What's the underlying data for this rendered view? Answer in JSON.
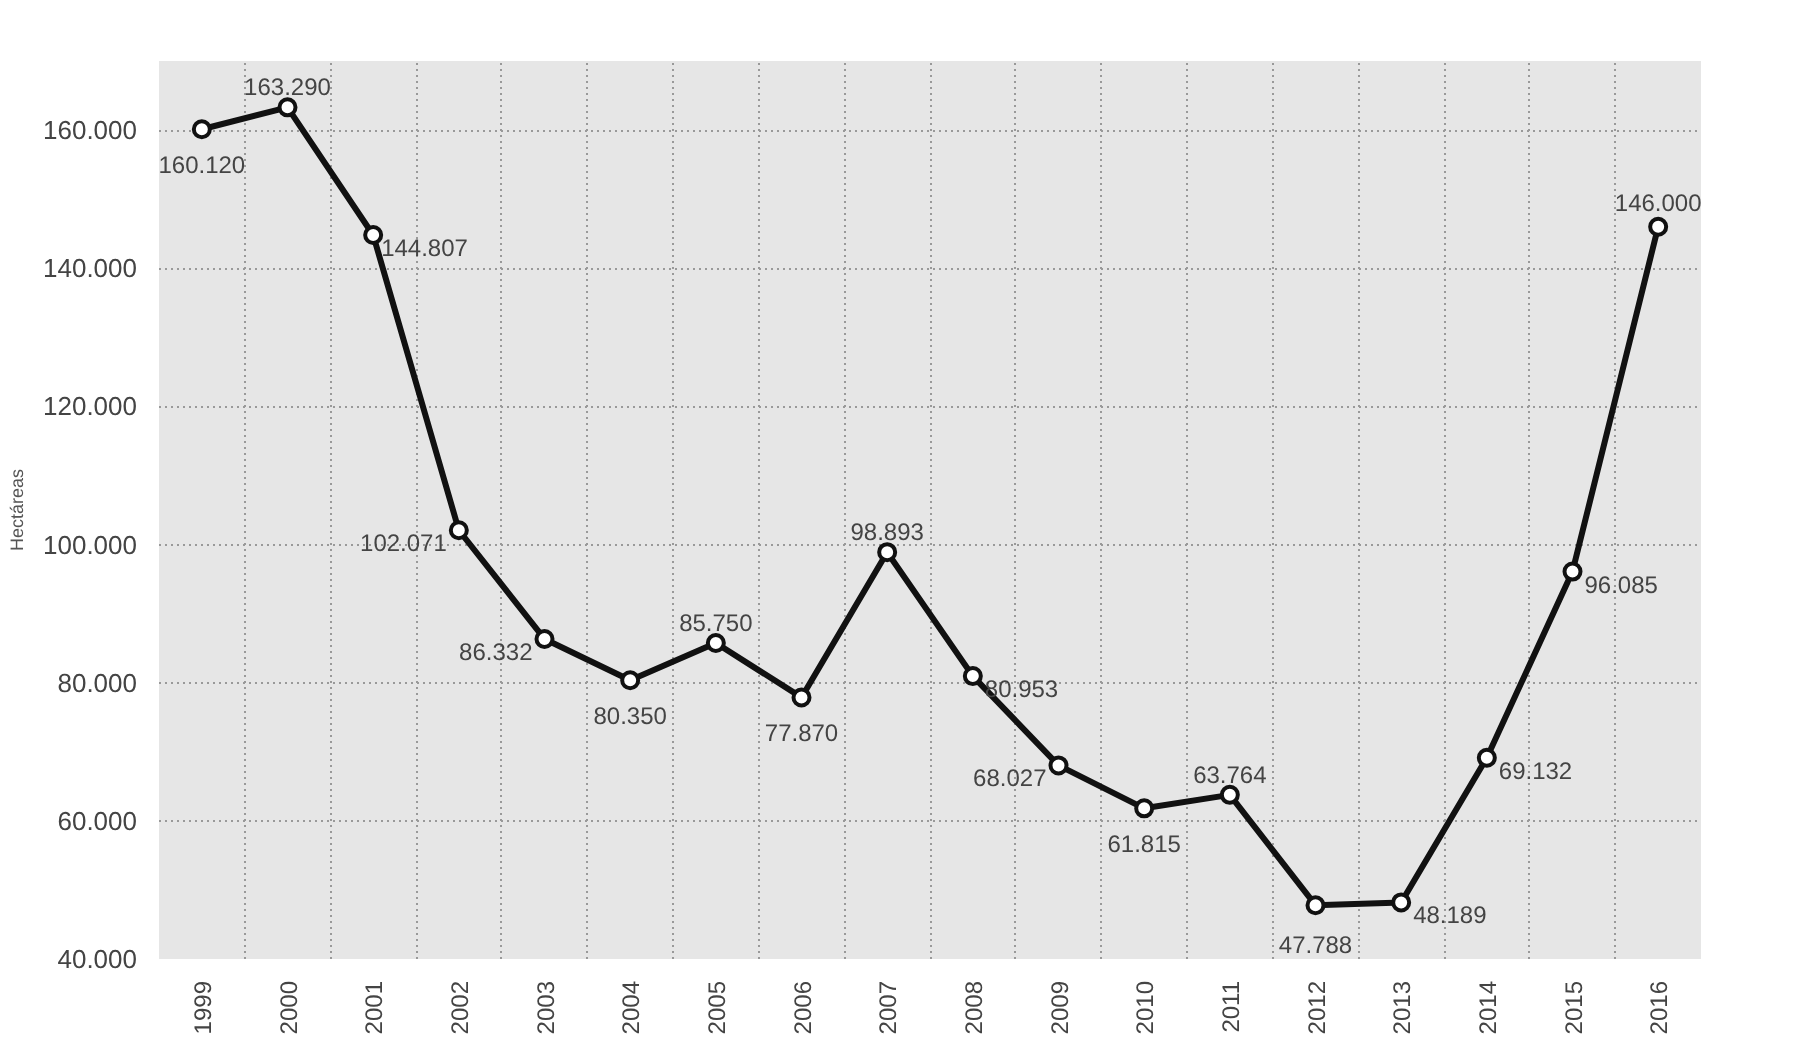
{
  "chart_data": {
    "type": "line",
    "ylabel": "Hectáreas",
    "categories": [
      "1999",
      "2000",
      "2001",
      "2002",
      "2003",
      "2004",
      "2005",
      "2006",
      "2007",
      "2008",
      "2009",
      "2010",
      "2011",
      "2012",
      "2013",
      "2014",
      "2015",
      "2016"
    ],
    "series": [
      {
        "color": "#111111",
        "values": [
          160120,
          163290,
          144807,
          102071,
          86332,
          80350,
          85750,
          77870,
          98893,
          80953,
          68027,
          61815,
          63764,
          47788,
          48189,
          69132,
          96085,
          146000
        ]
      }
    ],
    "value_labels": [
      "160.120",
      "163.290",
      "144.807",
      "102.071",
      "86.332",
      "80.350",
      "85.750",
      "77.870",
      "98.893",
      "80.953",
      "68.027",
      "61.815",
      "63.764",
      "47.788",
      "48.189",
      "69.132",
      "96.085",
      "146.000"
    ],
    "ylim": [
      40000,
      170000
    ],
    "yticks": [
      {
        "value": 40000,
        "label": "40.000"
      },
      {
        "value": 60000,
        "label": "60.000"
      },
      {
        "value": 80000,
        "label": "80.000"
      },
      {
        "value": 100000,
        "label": "100.000"
      },
      {
        "value": 120000,
        "label": "120.000"
      },
      {
        "value": 140000,
        "label": "140.000"
      },
      {
        "value": 160000,
        "label": "160.000"
      }
    ],
    "grid": true,
    "marker": "circle",
    "line_style": "solid"
  }
}
